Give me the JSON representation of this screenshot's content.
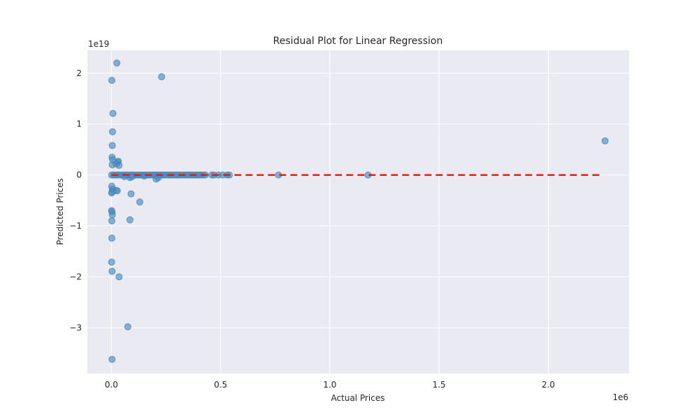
{
  "chart_data": {
    "type": "scatter",
    "title": "Residual Plot for Linear Regression",
    "xlabel": "Actual Prices",
    "ylabel": "Predicted Prices",
    "x_offset_label": "1e6",
    "y_offset_label": "1e19",
    "x_scale": 1000000,
    "y_scale": 10000000000000000000,
    "xlim": [
      -110000,
      2370000
    ],
    "ylim": [
      -3.9e+19,
      2.45e+19
    ],
    "x_ticks": [
      0,
      500000,
      1000000,
      1500000,
      2000000
    ],
    "x_tick_labels": [
      "0.0",
      "0.5",
      "1.0",
      "1.5",
      "2.0"
    ],
    "y_ticks": [
      -3e+19,
      -2e+19,
      -1e+19,
      0,
      1e+19,
      2e+19
    ],
    "y_tick_labels": [
      "−3",
      "−2",
      "−1",
      "0",
      "1",
      "2"
    ],
    "grid": true,
    "reference_line": {
      "x": [
        0,
        2250000
      ],
      "y": [
        0,
        0
      ],
      "color": "#e41a1c",
      "style": "dashed"
    },
    "series": [
      {
        "color": "#4c8ec0",
        "points": [
          [
            25000,
            2.2e+19
          ],
          [
            230000,
            1.93e+19
          ],
          [
            2000,
            1.86e+19
          ],
          [
            7000,
            1.21e+19
          ],
          [
            5000,
            8.5e+18
          ],
          [
            4000,
            5.8e+18
          ],
          [
            3000,
            3.5e+18
          ],
          [
            6000,
            3e+18
          ],
          [
            4000,
            2e+18
          ],
          [
            28000,
            2.5e+18
          ],
          [
            32000,
            2.7e+18
          ],
          [
            22000,
            2.2e+18
          ],
          [
            35000,
            1.9e+18
          ],
          [
            2260000,
            6.7e+18
          ],
          [
            1000,
            0
          ],
          [
            10000,
            0
          ],
          [
            20000,
            0
          ],
          [
            30000,
            0
          ],
          [
            40000,
            0
          ],
          [
            50000,
            0
          ],
          [
            60000,
            0
          ],
          [
            70000,
            0
          ],
          [
            80000,
            0
          ],
          [
            90000,
            0
          ],
          [
            100000,
            0
          ],
          [
            110000,
            0
          ],
          [
            120000,
            0
          ],
          [
            130000,
            0
          ],
          [
            140000,
            0
          ],
          [
            150000,
            0
          ],
          [
            160000,
            0
          ],
          [
            170000,
            0
          ],
          [
            180000,
            0
          ],
          [
            190000,
            0
          ],
          [
            200000,
            0
          ],
          [
            210000,
            0
          ],
          [
            220000,
            0
          ],
          [
            230000,
            0
          ],
          [
            240000,
            0
          ],
          [
            250000,
            0
          ],
          [
            260000,
            0
          ],
          [
            270000,
            0
          ],
          [
            280000,
            0
          ],
          [
            290000,
            0
          ],
          [
            300000,
            0
          ],
          [
            310000,
            0
          ],
          [
            320000,
            0
          ],
          [
            330000,
            0
          ],
          [
            340000,
            0
          ],
          [
            350000,
            0
          ],
          [
            360000,
            0
          ],
          [
            370000,
            0
          ],
          [
            380000,
            0
          ],
          [
            390000,
            0
          ],
          [
            400000,
            0
          ],
          [
            410000,
            0
          ],
          [
            420000,
            0
          ],
          [
            430000,
            0
          ],
          [
            460000,
            0
          ],
          [
            470000,
            0
          ],
          [
            490000,
            0
          ],
          [
            510000,
            0
          ],
          [
            530000,
            0
          ],
          [
            540000,
            0
          ],
          [
            765000,
            0
          ],
          [
            1175000,
            0
          ],
          [
            85000,
            -5e+17
          ],
          [
            95000,
            -3e+17
          ],
          [
            205000,
            -8e+17
          ],
          [
            215000,
            -5e+17
          ],
          [
            150000,
            -2e+17
          ],
          [
            60000,
            -3e+17
          ],
          [
            2000,
            -2.2e+18
          ],
          [
            4000,
            -2.8e+18
          ],
          [
            1000,
            -3.5e+18
          ],
          [
            5000,
            -3.3e+18
          ],
          [
            22000,
            -3e+18
          ],
          [
            27000,
            -3.1e+18
          ],
          [
            90000,
            -3.7e+18
          ],
          [
            130000,
            -5.3e+18
          ],
          [
            1000,
            -7e+18
          ],
          [
            3000,
            -7.2e+18
          ],
          [
            4000,
            -7.8e+18
          ],
          [
            2000,
            -9e+18
          ],
          [
            85000,
            -8.8e+18
          ],
          [
            2000,
            -1.24e+19
          ],
          [
            1000,
            -1.71e+19
          ],
          [
            3000,
            -1.89e+19
          ],
          [
            35000,
            -2e+19
          ],
          [
            75000,
            -2.98e+19
          ],
          [
            3000,
            -3.62e+19
          ]
        ]
      }
    ]
  }
}
